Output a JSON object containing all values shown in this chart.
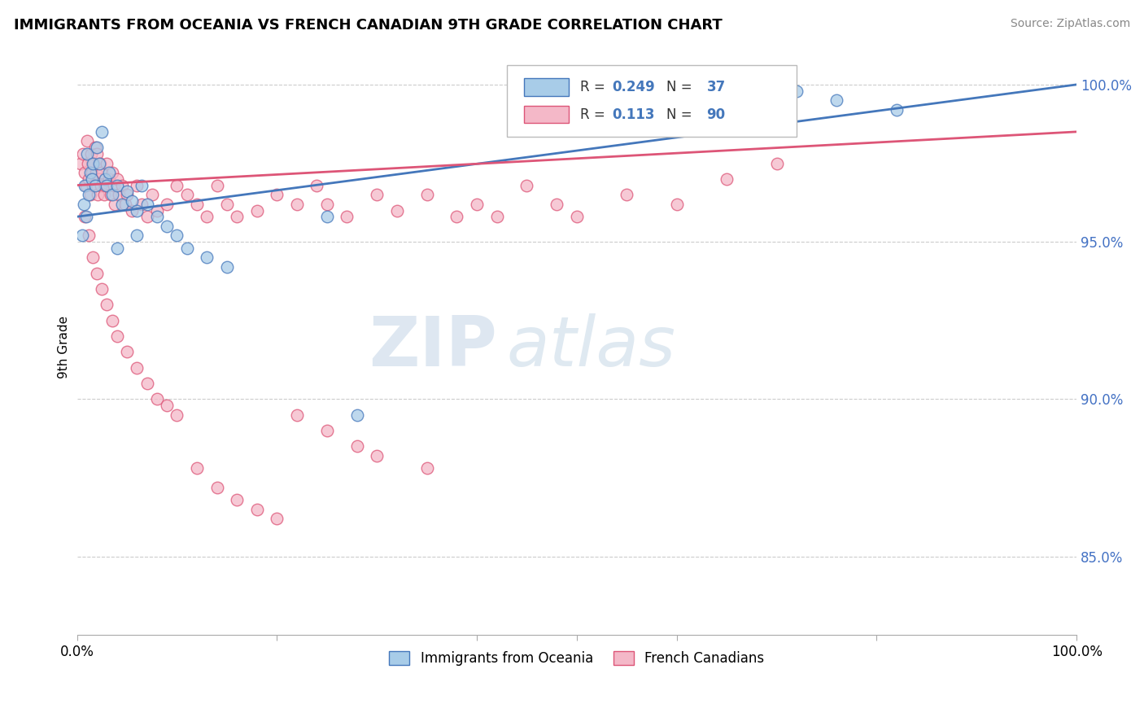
{
  "title": "IMMIGRANTS FROM OCEANIA VS FRENCH CANADIAN 9TH GRADE CORRELATION CHART",
  "source": "Source: ZipAtlas.com",
  "ylabel": "9th Grade",
  "legend_label_1": "Immigrants from Oceania",
  "legend_label_2": "French Canadians",
  "r1": 0.249,
  "n1": 37,
  "r2": 0.113,
  "n2": 90,
  "color1": "#a8cce8",
  "color2": "#f4b8c8",
  "trendline_color1": "#4477bb",
  "trendline_color2": "#dd5577",
  "xlim": [
    0.0,
    1.0
  ],
  "ylim": [
    0.825,
    1.008
  ],
  "yticks": [
    0.85,
    0.9,
    0.95,
    1.0
  ],
  "ytick_labels": [
    "85.0%",
    "90.0%",
    "95.0%",
    "100.0%"
  ],
  "watermark_zip": "ZIP",
  "watermark_atlas": "atlas",
  "blue_x": [
    0.005,
    0.007,
    0.008,
    0.009,
    0.01,
    0.012,
    0.013,
    0.015,
    0.016,
    0.018,
    0.02,
    0.022,
    0.025,
    0.028,
    0.03,
    0.032,
    0.035,
    0.04,
    0.045,
    0.05,
    0.055,
    0.06,
    0.065,
    0.07,
    0.08,
    0.09,
    0.1,
    0.11,
    0.13,
    0.15,
    0.04,
    0.06,
    0.25,
    0.28,
    0.72,
    0.76,
    0.82
  ],
  "blue_y": [
    0.952,
    0.962,
    0.968,
    0.958,
    0.978,
    0.965,
    0.972,
    0.97,
    0.975,
    0.968,
    0.98,
    0.975,
    0.985,
    0.97,
    0.968,
    0.972,
    0.965,
    0.968,
    0.962,
    0.966,
    0.963,
    0.96,
    0.968,
    0.962,
    0.958,
    0.955,
    0.952,
    0.948,
    0.945,
    0.942,
    0.948,
    0.952,
    0.958,
    0.895,
    0.998,
    0.995,
    0.992
  ],
  "pink_x": [
    0.004,
    0.006,
    0.008,
    0.009,
    0.01,
    0.011,
    0.012,
    0.013,
    0.014,
    0.015,
    0.016,
    0.017,
    0.018,
    0.019,
    0.02,
    0.021,
    0.022,
    0.023,
    0.024,
    0.025,
    0.027,
    0.028,
    0.03,
    0.032,
    0.034,
    0.035,
    0.037,
    0.038,
    0.04,
    0.042,
    0.045,
    0.048,
    0.05,
    0.055,
    0.06,
    0.065,
    0.07,
    0.075,
    0.08,
    0.09,
    0.1,
    0.11,
    0.12,
    0.13,
    0.14,
    0.15,
    0.16,
    0.18,
    0.2,
    0.22,
    0.24,
    0.25,
    0.27,
    0.3,
    0.32,
    0.35,
    0.38,
    0.4,
    0.42,
    0.45,
    0.48,
    0.5,
    0.55,
    0.6,
    0.65,
    0.7,
    0.008,
    0.012,
    0.016,
    0.02,
    0.025,
    0.03,
    0.035,
    0.04,
    0.05,
    0.06,
    0.07,
    0.08,
    0.09,
    0.1,
    0.12,
    0.14,
    0.16,
    0.18,
    0.2,
    0.22,
    0.25,
    0.28,
    0.3,
    0.35
  ],
  "pink_y": [
    0.975,
    0.978,
    0.972,
    0.968,
    0.982,
    0.975,
    0.97,
    0.965,
    0.978,
    0.972,
    0.968,
    0.975,
    0.98,
    0.972,
    0.978,
    0.965,
    0.97,
    0.975,
    0.968,
    0.972,
    0.965,
    0.968,
    0.975,
    0.97,
    0.965,
    0.972,
    0.968,
    0.962,
    0.97,
    0.965,
    0.968,
    0.962,
    0.965,
    0.96,
    0.968,
    0.962,
    0.958,
    0.965,
    0.96,
    0.962,
    0.968,
    0.965,
    0.962,
    0.958,
    0.968,
    0.962,
    0.958,
    0.96,
    0.965,
    0.962,
    0.968,
    0.962,
    0.958,
    0.965,
    0.96,
    0.965,
    0.958,
    0.962,
    0.958,
    0.968,
    0.962,
    0.958,
    0.965,
    0.962,
    0.97,
    0.975,
    0.958,
    0.952,
    0.945,
    0.94,
    0.935,
    0.93,
    0.925,
    0.92,
    0.915,
    0.91,
    0.905,
    0.9,
    0.898,
    0.895,
    0.878,
    0.872,
    0.868,
    0.865,
    0.862,
    0.895,
    0.89,
    0.885,
    0.882,
    0.878
  ]
}
